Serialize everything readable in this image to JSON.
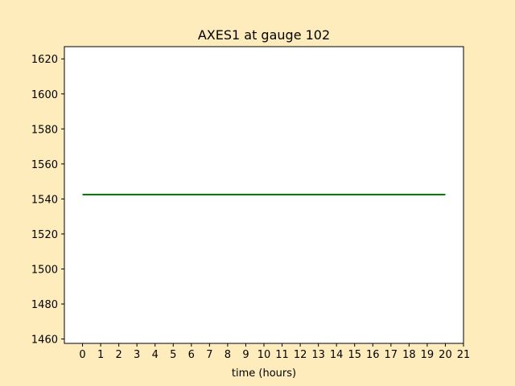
{
  "chart_data": {
    "type": "line",
    "title": "AXES1 at gauge 102",
    "xlabel": "time (hours)",
    "ylabel": "",
    "xlim": [
      -1,
      21
    ],
    "ylim": [
      1457.5,
      1627
    ],
    "xticks": [
      0,
      1,
      2,
      3,
      4,
      5,
      6,
      7,
      8,
      9,
      10,
      11,
      12,
      13,
      14,
      15,
      16,
      17,
      18,
      19,
      20,
      21
    ],
    "yticks": [
      1460,
      1480,
      1500,
      1520,
      1540,
      1560,
      1580,
      1600,
      1620
    ],
    "grid": false,
    "series": [
      {
        "color": "#008000",
        "x": [
          0,
          20
        ],
        "y": [
          1542.5,
          1542.5
        ]
      }
    ]
  },
  "colors": {
    "background": "#ffecbd",
    "plot_area": "#ffffff",
    "line": "#008000"
  }
}
